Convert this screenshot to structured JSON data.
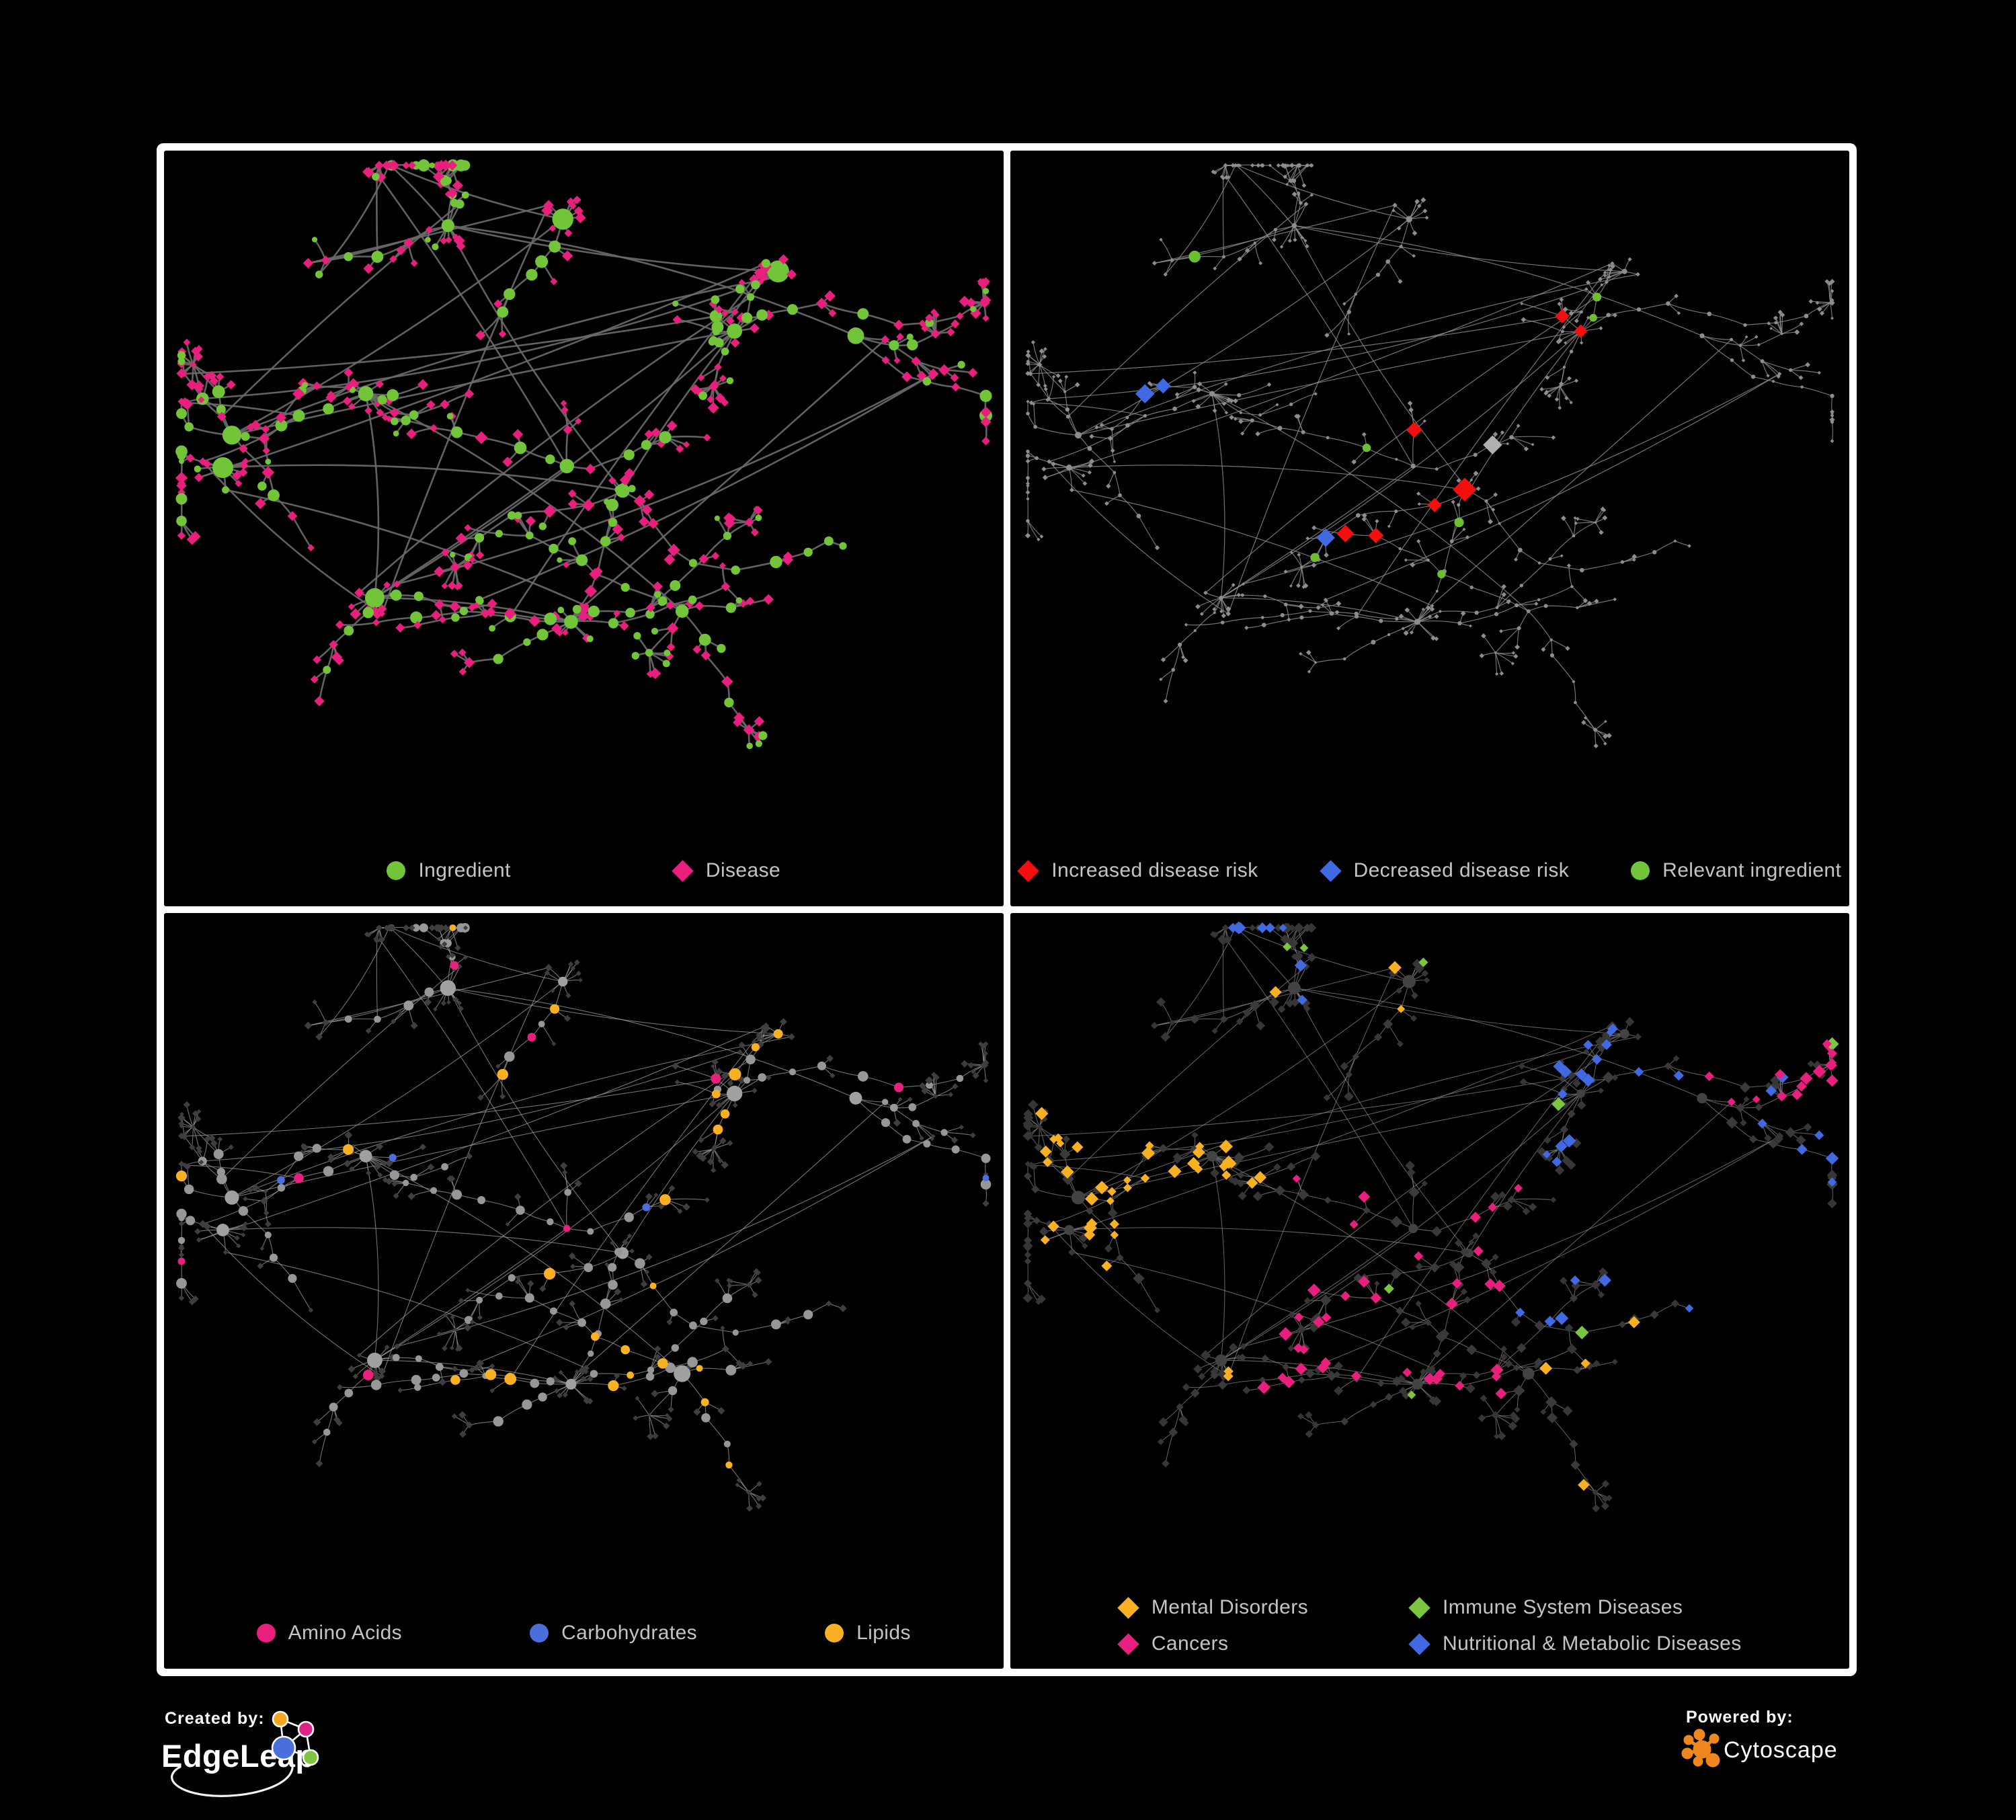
{
  "figure": {
    "background": "#000000",
    "frame_color": "#ffffff",
    "legend_text_color": "#c4c4c4"
  },
  "footer": {
    "created_by_label": "Created by:",
    "edgeleap_name": "EdgeLeap",
    "powered_by_label": "Powered by:",
    "cytoscape_name": "Cytoscape",
    "edgeleap_logo_colors": {
      "orange": "#f5a623",
      "pink": "#e0218a",
      "blue": "#4a6fdc",
      "green": "#7cc63f"
    },
    "cytoscape_orange": "#f0861e"
  },
  "network": {
    "seed": 20,
    "nodes": 520,
    "hubs": 13,
    "twig_p": 0.38,
    "star_p": 0.45,
    "hub_fan_p": 0.55,
    "cross_links": 22
  },
  "panels": [
    {
      "id": "ingredient-disease",
      "legend": [
        {
          "shape": "circle",
          "color": "#72c438",
          "label": "Ingredient"
        },
        {
          "shape": "diamond",
          "color": "#e81f7d",
          "label": "Disease"
        }
      ],
      "edge_style": {
        "color": "#6c6c6c",
        "width": 2.6,
        "opacity": 0.9
      },
      "base_style": {
        "hub": {
          "shape": "circle",
          "color": "#72c438",
          "size": 13
        },
        "mid": {
          "shape": "circle",
          "color": "#72c438",
          "size": 7.5
        },
        "leaf": {
          "shape": "diamond",
          "color": "#e81f7d",
          "size": 6.8
        }
      },
      "highlight_rules": [
        {
          "roles": "mid",
          "p": 0.44,
          "shape": "diamond",
          "color": "#e81f7d",
          "size": 7.5
        },
        {
          "roles": "leaf",
          "p": 0.2,
          "shape": "circle",
          "color": "#72c438",
          "size": 5.5
        }
      ]
    },
    {
      "id": "disease-risk",
      "legend": [
        {
          "shape": "diamond",
          "color": "#f40f0f",
          "label": "Increased disease risk"
        },
        {
          "shape": "diamond",
          "color": "#4169e1",
          "label": "Decreased disease risk"
        },
        {
          "shape": "circle",
          "color": "#72c438",
          "label": "Relevant ingredient"
        }
      ],
      "edge_style": {
        "color": "#909090",
        "width": 1.2,
        "opacity": 0.8
      },
      "base_style": {
        "hub": {
          "shape": "circle",
          "color": "#8d8d8d",
          "size": 4
        },
        "mid": {
          "shape": "circle",
          "color": "#8d8d8d",
          "size": 2.7
        },
        "leaf": {
          "shape": "diamond",
          "color": "#8d8d8d",
          "size": 3.2
        }
      },
      "highlight_rules": [
        {
          "roles": "hub|mid",
          "zone": [
            0.25,
            0.8,
            0.12,
            0.6
          ],
          "p": 0.16,
          "shape": "diamond",
          "color": "#f40f0f",
          "size": 14
        },
        {
          "roles": "mid",
          "zone": [
            0.25,
            0.75,
            0.15,
            0.55
          ],
          "p": 0.05,
          "shape": "diamond",
          "color": "#b0b0b0",
          "size": 12
        },
        {
          "roles": "mid",
          "zone": [
            0.16,
            0.42,
            0.3,
            0.62
          ],
          "p": 0.07,
          "shape": "diamond",
          "color": "#4169e1",
          "size": 12
        },
        {
          "roles": "mid",
          "zone": [
            0.8,
            1.0,
            0.1,
            0.4
          ],
          "p": 0.07,
          "shape": "diamond",
          "color": "#4169e1",
          "size": 12
        },
        {
          "roles": "hub|mid",
          "zone": [
            0.1,
            0.75,
            0.1,
            0.65
          ],
          "p": 0.12,
          "shape": "circle",
          "color": "#6cc030",
          "size": 7
        },
        {
          "roles": "mid|leaf",
          "zone": [
            0.3,
            0.62,
            0.72,
            0.95
          ],
          "p": 0.012,
          "shape": "diamond",
          "color": "#f40f0f",
          "size": 13
        }
      ]
    },
    {
      "id": "compound-classes",
      "legend": [
        {
          "shape": "circle",
          "color": "#e81f7d",
          "label": "Amino Acids"
        },
        {
          "shape": "circle",
          "color": "#4a6fdc",
          "label": "Carbohydrates"
        },
        {
          "shape": "circle",
          "color": "#f9b022",
          "label": "Lipids"
        }
      ],
      "edge_style": {
        "color": "#9a9a9a",
        "width": 1.1,
        "opacity": 0.75
      },
      "base_style": {
        "hub": {
          "shape": "circle",
          "color": "#a0a0a0",
          "size": 10
        },
        "mid": {
          "shape": "circle",
          "color": "#979797",
          "size": 6.2
        },
        "leaf": {
          "shape": "diamond",
          "color": "#3e3e3e",
          "size": 4.6
        }
      },
      "highlight_rules": [
        {
          "roles": "hub|mid",
          "zone": [
            0.45,
            0.78,
            0.08,
            0.35
          ],
          "p": 0.5,
          "shape": "circle",
          "color": "#f9b022",
          "size": 7.2
        },
        {
          "roles": "mid",
          "zone": [
            0.08,
            0.4,
            0.08,
            0.4
          ],
          "p": 0.14,
          "shape": "circle",
          "color": "#4a6fdc",
          "size": 6.5
        },
        {
          "roles": "mid",
          "zone": [
            0.35,
            0.65,
            0.45,
            0.72
          ],
          "p": 0.17,
          "shape": "circle",
          "color": "#f9b022",
          "size": 7
        },
        {
          "roles": "mid",
          "p": 0.08,
          "shape": "circle",
          "color": "#f9b022",
          "size": 6.5
        },
        {
          "roles": "hub|mid",
          "p": 0.055,
          "shape": "circle",
          "color": "#e81f7d",
          "size": 7
        },
        {
          "roles": "mid",
          "p": 0.02,
          "shape": "circle",
          "color": "#4a6fdc",
          "size": 6.5
        }
      ]
    },
    {
      "id": "disease-categories",
      "legend": [
        {
          "shape": "diamond",
          "color": "#f9b022",
          "label": "Mental Disorders"
        },
        {
          "shape": "diamond",
          "color": "#e81f7d",
          "label": "Cancers"
        },
        {
          "shape": "diamond",
          "color": "#7cc63f",
          "label": "Immune System Diseases"
        },
        {
          "shape": "diamond",
          "color": "#4169e1",
          "label": "Nutritional & Metabolic Diseases"
        }
      ],
      "edge_style": {
        "color": "#8a8a8a",
        "width": 1.05,
        "opacity": 0.7
      },
      "base_style": {
        "hub": {
          "shape": "circle",
          "color": "#434343",
          "size": 8
        },
        "mid": {
          "shape": "diamond",
          "color": "#3a3a3a",
          "size": 7
        },
        "leaf": {
          "shape": "diamond",
          "color": "#363636",
          "size": 6
        }
      },
      "highlight_rules": [
        {
          "roles": "mid|leaf",
          "zone": [
            0.04,
            0.3,
            0.3,
            0.62
          ],
          "p": 0.5,
          "shape": "diamond",
          "color": "#f9b022",
          "size": 8
        },
        {
          "roles": "mid|leaf",
          "zone": [
            0.82,
            1.0,
            0.1,
            0.28
          ],
          "p": 0.45,
          "shape": "diamond",
          "color": "#e81f7d",
          "size": 8
        },
        {
          "roles": "mid|leaf",
          "zone": [
            0.3,
            0.62,
            0.38,
            0.72
          ],
          "p": 0.3,
          "shape": "diamond",
          "color": "#e81f7d",
          "size": 8
        },
        {
          "roles": "mid|leaf",
          "zone": [
            0.6,
            1.0,
            0.05,
            0.6
          ],
          "p": 0.27,
          "shape": "diamond",
          "color": "#4169e1",
          "size": 8
        },
        {
          "roles": "mid|leaf",
          "zone": [
            0.2,
            0.6,
            0.0,
            0.25
          ],
          "p": 0.1,
          "shape": "diamond",
          "color": "#4169e1",
          "size": 8
        },
        {
          "roles": "mid|leaf",
          "p": 0.02,
          "shape": "diamond",
          "color": "#7cc63f",
          "size": 8
        },
        {
          "roles": "mid|leaf",
          "p": 0.03,
          "shape": "diamond",
          "color": "#f9b022",
          "size": 8
        }
      ]
    }
  ]
}
